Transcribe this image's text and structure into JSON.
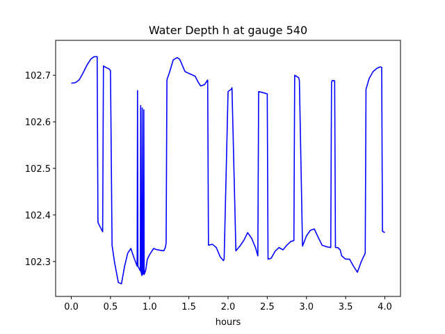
{
  "chart_data": {
    "type": "line",
    "title": "Water Depth h at gauge 540",
    "xlabel": "hours",
    "ylabel": "",
    "xlim": [
      -0.2,
      4.2
    ],
    "ylim": [
      102.225,
      102.775
    ],
    "xticks": [
      0.0,
      0.5,
      1.0,
      1.5,
      2.0,
      2.5,
      3.0,
      3.5,
      4.0
    ],
    "xtick_labels": [
      "0.0",
      "0.5",
      "1.0",
      "1.5",
      "2.0",
      "2.5",
      "3.0",
      "3.5",
      "4.0"
    ],
    "yticks": [
      102.3,
      102.4,
      102.5,
      102.6,
      102.7
    ],
    "ytick_labels": [
      "102.3",
      "102.4",
      "102.5",
      "102.6",
      "102.7"
    ],
    "grid": false,
    "series": [
      {
        "color": "#0000ff",
        "x": [
          0.0,
          0.05,
          0.1,
          0.15,
          0.2,
          0.25,
          0.29,
          0.33,
          0.34,
          0.35,
          0.4,
          0.41,
          0.45,
          0.48,
          0.5,
          0.52,
          0.55,
          0.6,
          0.64,
          0.68,
          0.72,
          0.76,
          0.8,
          0.84,
          0.845,
          0.85,
          0.88,
          0.885,
          0.89,
          0.9,
          0.905,
          0.91,
          0.92,
          0.925,
          0.93,
          0.95,
          0.97,
          1.0,
          1.05,
          1.1,
          1.18,
          1.2,
          1.21,
          1.22,
          1.26,
          1.3,
          1.35,
          1.38,
          1.4,
          1.45,
          1.5,
          1.58,
          1.62,
          1.65,
          1.7,
          1.74,
          1.75,
          1.8,
          1.85,
          1.9,
          1.94,
          1.95,
          2.0,
          2.04,
          2.05,
          2.1,
          2.15,
          2.2,
          2.25,
          2.3,
          2.35,
          2.38,
          2.39,
          2.44,
          2.5,
          2.51,
          2.55,
          2.6,
          2.65,
          2.7,
          2.75,
          2.8,
          2.84,
          2.85,
          2.9,
          2.91,
          2.95,
          3.0,
          3.05,
          3.1,
          3.15,
          3.2,
          3.25,
          3.31,
          3.32,
          3.33,
          3.36,
          3.37,
          3.4,
          3.43,
          3.45,
          3.5,
          3.55,
          3.6,
          3.65,
          3.7,
          3.75,
          3.76,
          3.8,
          3.85,
          3.9,
          3.94,
          3.96,
          3.97,
          4.0
        ],
        "y": [
          102.683,
          102.684,
          102.69,
          102.705,
          102.722,
          102.735,
          102.74,
          102.74,
          102.385,
          102.38,
          102.364,
          102.72,
          102.716,
          102.714,
          102.71,
          102.335,
          102.3,
          102.255,
          102.252,
          102.29,
          102.318,
          102.328,
          102.308,
          102.29,
          102.667,
          102.29,
          102.28,
          102.635,
          102.278,
          102.27,
          102.63,
          102.272,
          102.275,
          102.626,
          102.272,
          102.282,
          102.305,
          102.315,
          102.328,
          102.325,
          102.323,
          102.33,
          102.34,
          102.69,
          102.71,
          102.733,
          102.738,
          102.735,
          102.728,
          102.708,
          102.704,
          102.698,
          102.685,
          102.677,
          102.68,
          102.69,
          102.335,
          102.337,
          102.33,
          102.31,
          102.302,
          102.305,
          102.665,
          102.67,
          102.673,
          102.323,
          102.333,
          102.345,
          102.362,
          102.35,
          102.33,
          102.312,
          102.665,
          102.663,
          102.66,
          102.305,
          102.307,
          102.322,
          102.33,
          102.325,
          102.335,
          102.343,
          102.345,
          102.7,
          102.695,
          102.689,
          102.333,
          102.355,
          102.367,
          102.37,
          102.352,
          102.335,
          102.332,
          102.33,
          102.685,
          102.689,
          102.688,
          102.33,
          102.33,
          102.325,
          102.312,
          102.305,
          102.305,
          102.29,
          102.277,
          102.3,
          102.318,
          102.67,
          102.693,
          102.708,
          102.715,
          102.718,
          102.717,
          102.365,
          102.362
        ]
      }
    ]
  }
}
